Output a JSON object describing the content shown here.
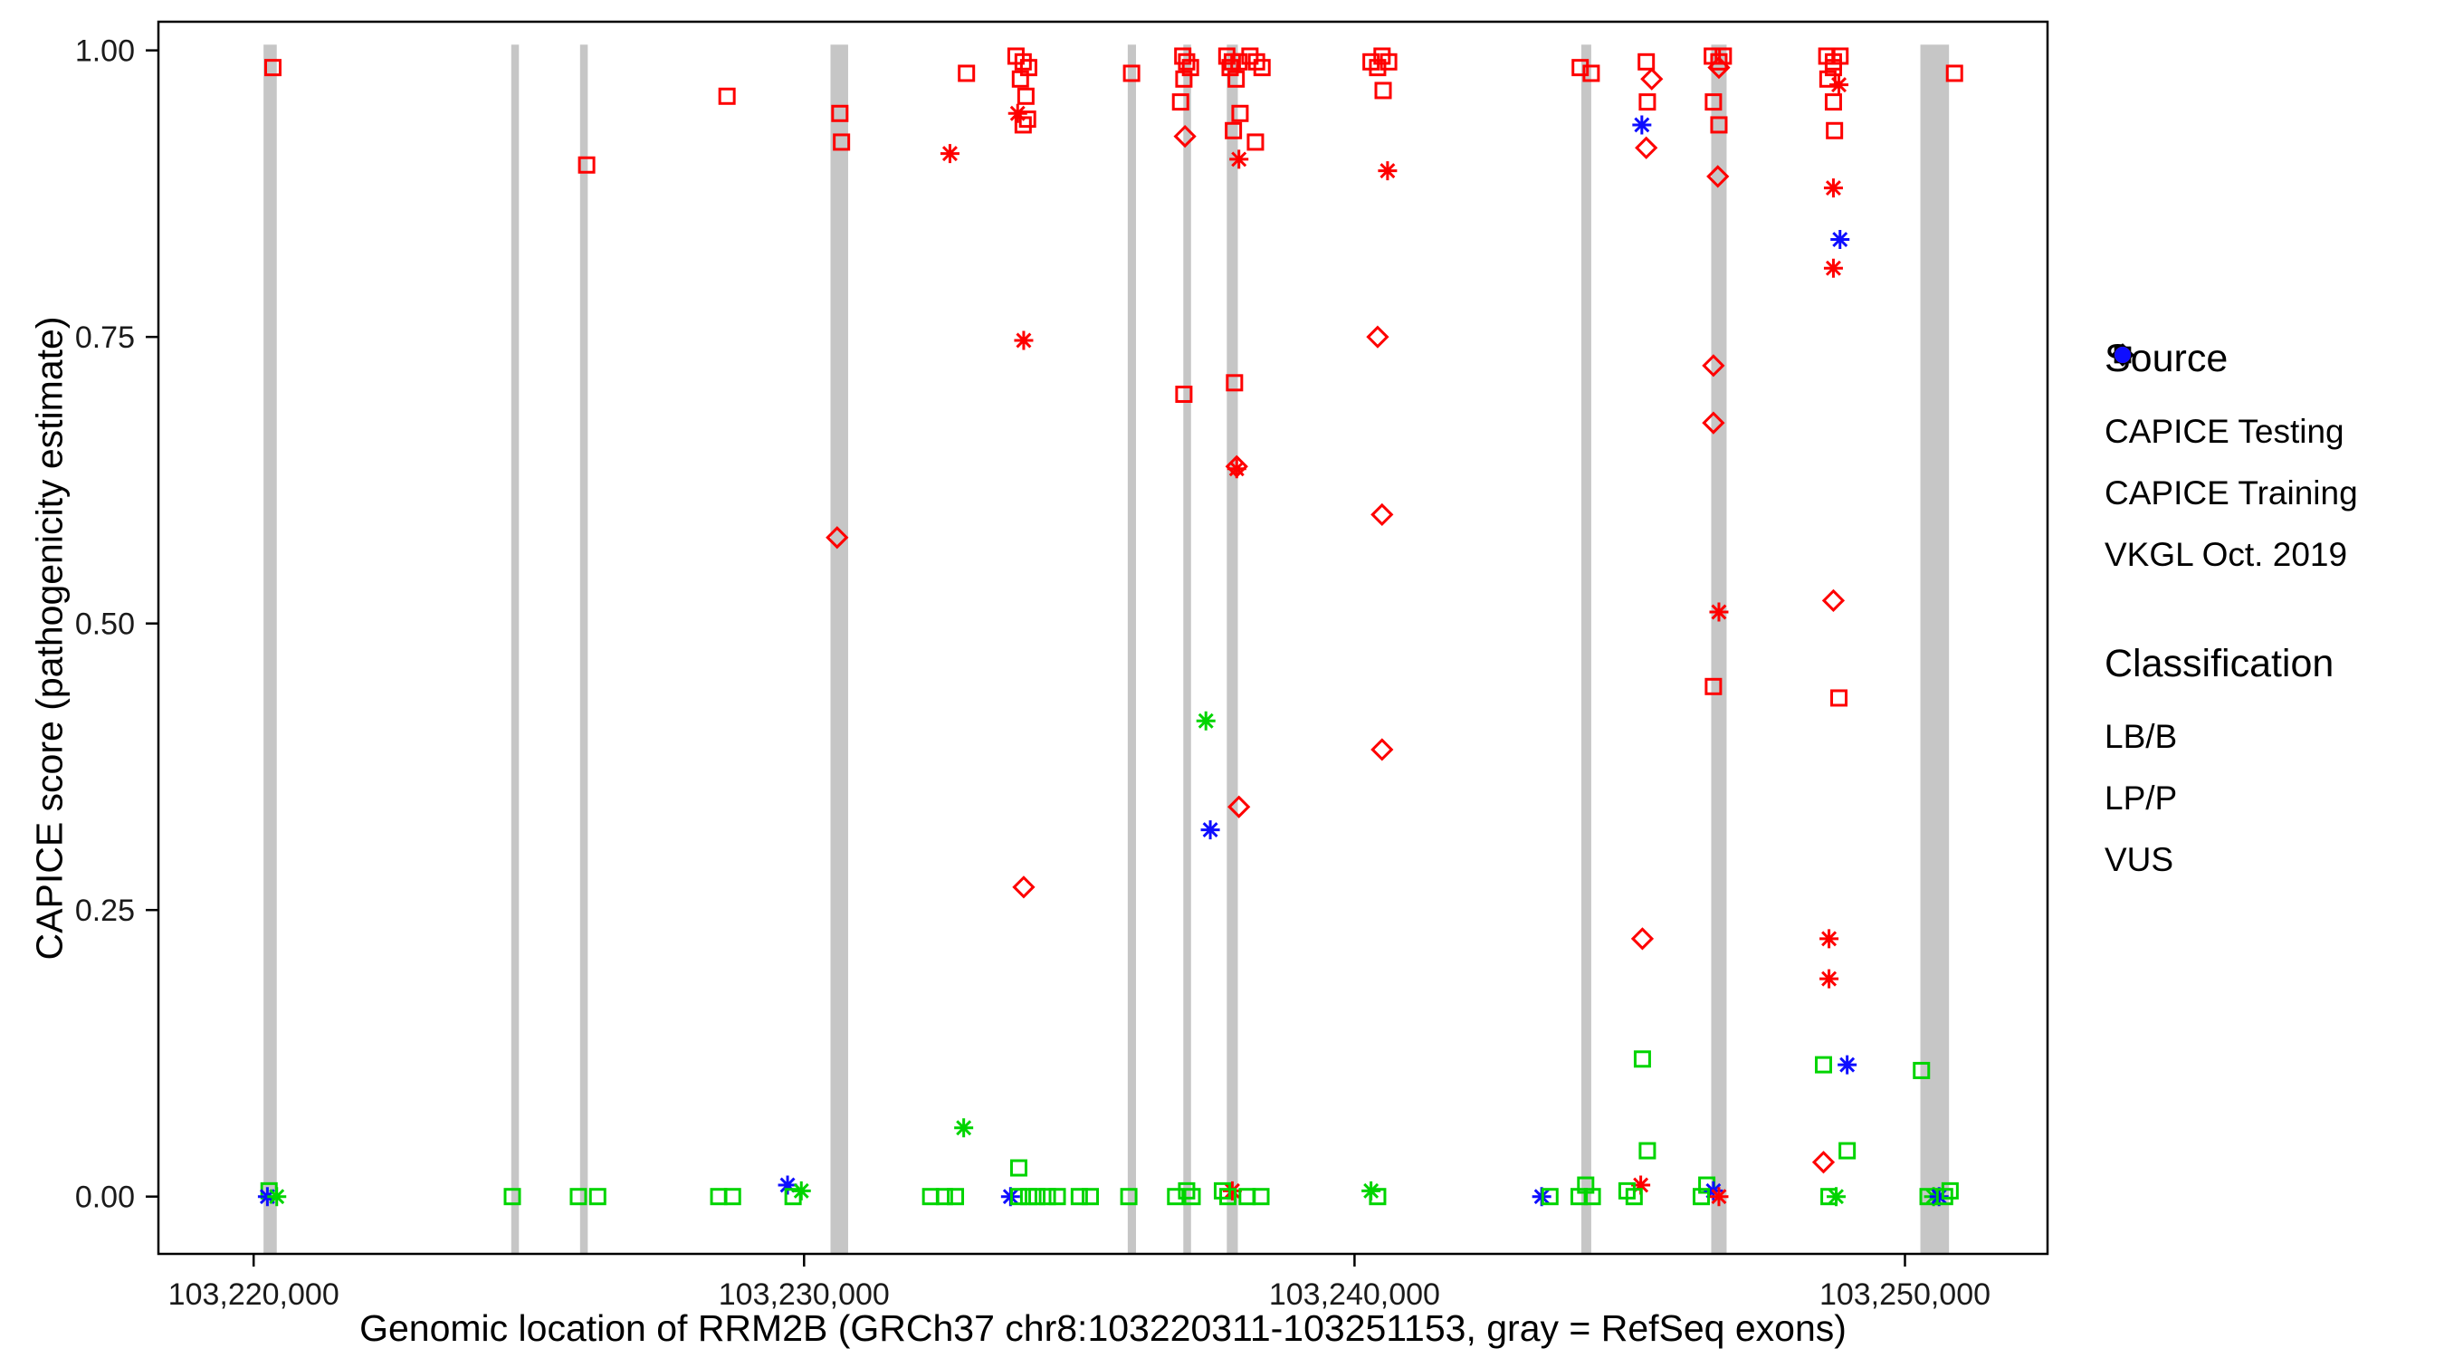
{
  "legend": {
    "source": {
      "title": "Source",
      "items": [
        "CAPICE Testing",
        "CAPICE Training",
        "VKGL Oct. 2019"
      ]
    },
    "classification": {
      "title": "Classification",
      "items": [
        "LB/B",
        "LP/P",
        "VUS"
      ]
    }
  },
  "chart_data": {
    "type": "scatter",
    "title": "",
    "xlabel": "Genomic location of RRM2B (GRCh37 chr8:103220311-103251153, gray = RefSeq exons)",
    "ylabel": "CAPICE score (pathogenicity estimate)",
    "x_ticks": [
      103220000,
      103230000,
      103240000,
      103250000
    ],
    "x_tick_labels": [
      "103,220,000",
      "103,230,000",
      "103,240,000",
      "103,250,000"
    ],
    "y_ticks": [
      0,
      0.25,
      0.5,
      0.75,
      1
    ],
    "y_tick_labels": [
      "0.00",
      "0.25",
      "0.50",
      "0.75",
      "1.00"
    ],
    "xlim": [
      103218270,
      103252590
    ],
    "ylim": [
      -0.05,
      1.025
    ],
    "grid": false,
    "legend_position": "right",
    "exon_color": "#c6c6c6",
    "colors": {
      "LB/B": "#00d400",
      "LP/P": "#fe0000",
      "VUS": "#0e0eff"
    },
    "class_codes": {
      "g": "LB/B",
      "r": "LP/P",
      "b": "VUS"
    },
    "source_codes": {
      "d": "CAPICE Testing",
      "s": "CAPICE Training",
      "a": "VKGL Oct. 2019"
    },
    "marker_shapes": {
      "CAPICE Testing": "open-diamond",
      "CAPICE Training": "open-square",
      "VKGL Oct. 2019": "asterisk"
    },
    "exons": [
      [
        103220180,
        103220420
      ],
      [
        103224680,
        103224820
      ],
      [
        103225930,
        103226070
      ],
      [
        103230480,
        103230800
      ],
      [
        103235880,
        103236030
      ],
      [
        103236890,
        103237030
      ],
      [
        103237680,
        103237880
      ],
      [
        103244120,
        103244300
      ],
      [
        103246480,
        103246760
      ],
      [
        103250280,
        103250800
      ]
    ],
    "points_format": [
      "genomic_position",
      "capice_score",
      "source_code",
      "classification_code"
    ],
    "points": [
      [
        103220350,
        0.985,
        "s",
        "r"
      ],
      [
        103220280,
        0.005,
        "s",
        "g"
      ],
      [
        103220250,
        0.0,
        "a",
        "b"
      ],
      [
        103220420,
        0.0,
        "a",
        "g"
      ],
      [
        103224700,
        0.0,
        "s",
        "g"
      ],
      [
        103225900,
        0.0,
        "s",
        "g"
      ],
      [
        103226050,
        0.9,
        "s",
        "r"
      ],
      [
        103226250,
        0.0,
        "s",
        "g"
      ],
      [
        103228600,
        0.96,
        "s",
        "r"
      ],
      [
        103228450,
        0.0,
        "s",
        "g"
      ],
      [
        103228700,
        0.0,
        "s",
        "g"
      ],
      [
        103229700,
        0.01,
        "a",
        "b"
      ],
      [
        103229800,
        0.0,
        "s",
        "g"
      ],
      [
        103229950,
        0.005,
        "a",
        "g"
      ],
      [
        103230650,
        0.945,
        "s",
        "r"
      ],
      [
        103230680,
        0.92,
        "s",
        "r"
      ],
      [
        103230600,
        0.575,
        "d",
        "r"
      ],
      [
        103232300,
        0.0,
        "s",
        "g"
      ],
      [
        103232550,
        0.0,
        "s",
        "g"
      ],
      [
        103232750,
        0.0,
        "s",
        "g"
      ],
      [
        103232900,
        0.06,
        "a",
        "g"
      ],
      [
        103232950,
        0.98,
        "s",
        "r"
      ],
      [
        103232650,
        0.91,
        "a",
        "r"
      ],
      [
        103233850,
        0.995,
        "s",
        "r"
      ],
      [
        103233980,
        0.99,
        "s",
        "r"
      ],
      [
        103234080,
        0.985,
        "s",
        "r"
      ],
      [
        103233930,
        0.975,
        "s",
        "r"
      ],
      [
        103234030,
        0.96,
        "s",
        "r"
      ],
      [
        103233880,
        0.945,
        "a",
        "r"
      ],
      [
        103234060,
        0.94,
        "s",
        "r"
      ],
      [
        103233980,
        0.935,
        "s",
        "r"
      ],
      [
        103233990,
        0.747,
        "a",
        "r"
      ],
      [
        103233990,
        0.27,
        "d",
        "r"
      ],
      [
        103233900,
        0.025,
        "s",
        "g"
      ],
      [
        103233750,
        0.0,
        "a",
        "b"
      ],
      [
        103233900,
        0.0,
        "s",
        "g"
      ],
      [
        103234080,
        0.0,
        "s",
        "g"
      ],
      [
        103234230,
        0.0,
        "s",
        "g"
      ],
      [
        103234420,
        0.0,
        "s",
        "g"
      ],
      [
        103234600,
        0.0,
        "s",
        "g"
      ],
      [
        103235000,
        0.0,
        "s",
        "g"
      ],
      [
        103235200,
        0.0,
        "s",
        "g"
      ],
      [
        103235950,
        0.98,
        "s",
        "r"
      ],
      [
        103235900,
        0.0,
        "s",
        "g"
      ],
      [
        103236880,
        0.995,
        "s",
        "r"
      ],
      [
        103236950,
        0.99,
        "s",
        "r"
      ],
      [
        103237020,
        0.985,
        "s",
        "r"
      ],
      [
        103236900,
        0.975,
        "s",
        "r"
      ],
      [
        103236840,
        0.955,
        "s",
        "r"
      ],
      [
        103236920,
        0.925,
        "d",
        "r"
      ],
      [
        103236900,
        0.7,
        "s",
        "r"
      ],
      [
        103236750,
        0.0,
        "s",
        "g"
      ],
      [
        103236950,
        0.005,
        "s",
        "g"
      ],
      [
        103237050,
        0.0,
        "s",
        "g"
      ],
      [
        103237300,
        0.415,
        "a",
        "g"
      ],
      [
        103237380,
        0.32,
        "a",
        "b"
      ],
      [
        103237680,
        0.995,
        "s",
        "r"
      ],
      [
        103237780,
        0.99,
        "s",
        "r"
      ],
      [
        103237900,
        0.99,
        "s",
        "r"
      ],
      [
        103237740,
        0.985,
        "s",
        "r"
      ],
      [
        103237850,
        0.975,
        "s",
        "r"
      ],
      [
        103237920,
        0.945,
        "s",
        "r"
      ],
      [
        103237800,
        0.93,
        "s",
        "r"
      ],
      [
        103237900,
        0.905,
        "a",
        "r"
      ],
      [
        103237820,
        0.71,
        "s",
        "r"
      ],
      [
        103237860,
        0.635,
        "a",
        "r"
      ],
      [
        103237860,
        0.637,
        "d",
        "r"
      ],
      [
        103237900,
        0.34,
        "d",
        "r"
      ],
      [
        103237780,
        0.005,
        "a",
        "r"
      ],
      [
        103237600,
        0.005,
        "s",
        "g"
      ],
      [
        103237700,
        0.0,
        "s",
        "g"
      ],
      [
        103238100,
        0.995,
        "s",
        "r"
      ],
      [
        103238220,
        0.99,
        "s",
        "r"
      ],
      [
        103238320,
        0.985,
        "s",
        "r"
      ],
      [
        103238200,
        0.92,
        "s",
        "r"
      ],
      [
        103238050,
        0.0,
        "s",
        "g"
      ],
      [
        103238300,
        0.0,
        "s",
        "g"
      ],
      [
        103240300,
        0.99,
        "s",
        "r"
      ],
      [
        103240500,
        0.995,
        "s",
        "r"
      ],
      [
        103240620,
        0.99,
        "s",
        "r"
      ],
      [
        103240420,
        0.985,
        "s",
        "r"
      ],
      [
        103240520,
        0.965,
        "s",
        "r"
      ],
      [
        103240600,
        0.895,
        "a",
        "r"
      ],
      [
        103240420,
        0.75,
        "d",
        "r"
      ],
      [
        103240500,
        0.595,
        "d",
        "r"
      ],
      [
        103240500,
        0.39,
        "d",
        "r"
      ],
      [
        103240300,
        0.005,
        "a",
        "g"
      ],
      [
        103240420,
        0.0,
        "s",
        "g"
      ],
      [
        103243400,
        0.0,
        "a",
        "b"
      ],
      [
        103243550,
        0.0,
        "s",
        "g"
      ],
      [
        103244100,
        0.985,
        "s",
        "r"
      ],
      [
        103244300,
        0.98,
        "s",
        "r"
      ],
      [
        103244200,
        0.01,
        "s",
        "g"
      ],
      [
        103244320,
        0.0,
        "s",
        "g"
      ],
      [
        103244080,
        0.0,
        "s",
        "g"
      ],
      [
        103245300,
        0.99,
        "s",
        "r"
      ],
      [
        103245400,
        0.975,
        "d",
        "r"
      ],
      [
        103245320,
        0.955,
        "s",
        "r"
      ],
      [
        103245220,
        0.935,
        "a",
        "b"
      ],
      [
        103245300,
        0.915,
        "d",
        "r"
      ],
      [
        103245230,
        0.225,
        "d",
        "r"
      ],
      [
        103245230,
        0.12,
        "s",
        "g"
      ],
      [
        103245320,
        0.04,
        "s",
        "g"
      ],
      [
        103245200,
        0.01,
        "a",
        "r"
      ],
      [
        103245080,
        0.0,
        "s",
        "g"
      ],
      [
        103244950,
        0.005,
        "s",
        "g"
      ],
      [
        103246500,
        0.995,
        "s",
        "r"
      ],
      [
        103246620,
        0.99,
        "s",
        "r"
      ],
      [
        103246700,
        0.995,
        "s",
        "r"
      ],
      [
        103246620,
        0.985,
        "d",
        "r"
      ],
      [
        103246520,
        0.955,
        "s",
        "r"
      ],
      [
        103246620,
        0.935,
        "s",
        "r"
      ],
      [
        103246600,
        0.89,
        "d",
        "r"
      ],
      [
        103246520,
        0.725,
        "d",
        "r"
      ],
      [
        103246520,
        0.675,
        "d",
        "r"
      ],
      [
        103246620,
        0.51,
        "a",
        "r"
      ],
      [
        103246520,
        0.445,
        "s",
        "r"
      ],
      [
        103246400,
        0.01,
        "s",
        "g"
      ],
      [
        103246520,
        0.005,
        "a",
        "b"
      ],
      [
        103246620,
        0.0,
        "a",
        "r"
      ],
      [
        103246300,
        0.0,
        "s",
        "g"
      ],
      [
        103248580,
        0.995,
        "s",
        "r"
      ],
      [
        103248700,
        0.99,
        "s",
        "r"
      ],
      [
        103248820,
        0.995,
        "s",
        "r"
      ],
      [
        103248700,
        0.985,
        "s",
        "r"
      ],
      [
        103248600,
        0.975,
        "s",
        "r"
      ],
      [
        103248800,
        0.97,
        "a",
        "r"
      ],
      [
        103248700,
        0.955,
        "s",
        "r"
      ],
      [
        103248720,
        0.93,
        "s",
        "r"
      ],
      [
        103248700,
        0.88,
        "a",
        "r"
      ],
      [
        103248820,
        0.835,
        "a",
        "b"
      ],
      [
        103248700,
        0.81,
        "a",
        "r"
      ],
      [
        103248700,
        0.52,
        "d",
        "r"
      ],
      [
        103248800,
        0.435,
        "s",
        "r"
      ],
      [
        103248620,
        0.225,
        "a",
        "r"
      ],
      [
        103248620,
        0.19,
        "a",
        "r"
      ],
      [
        103248950,
        0.115,
        "a",
        "b"
      ],
      [
        103248520,
        0.115,
        "s",
        "g"
      ],
      [
        103248520,
        0.03,
        "d",
        "r"
      ],
      [
        103248620,
        0.0,
        "s",
        "g"
      ],
      [
        103248750,
        0.0,
        "a",
        "g"
      ],
      [
        103248950,
        0.04,
        "s",
        "g"
      ],
      [
        103250900,
        0.98,
        "s",
        "r"
      ],
      [
        103250300,
        0.11,
        "s",
        "g"
      ],
      [
        103250420,
        0.0,
        "s",
        "g"
      ],
      [
        103250520,
        0.0,
        "a",
        "g"
      ],
      [
        103250620,
        0.0,
        "a",
        "b"
      ],
      [
        103250720,
        0.0,
        "s",
        "g"
      ],
      [
        103250820,
        0.005,
        "s",
        "g"
      ]
    ]
  }
}
